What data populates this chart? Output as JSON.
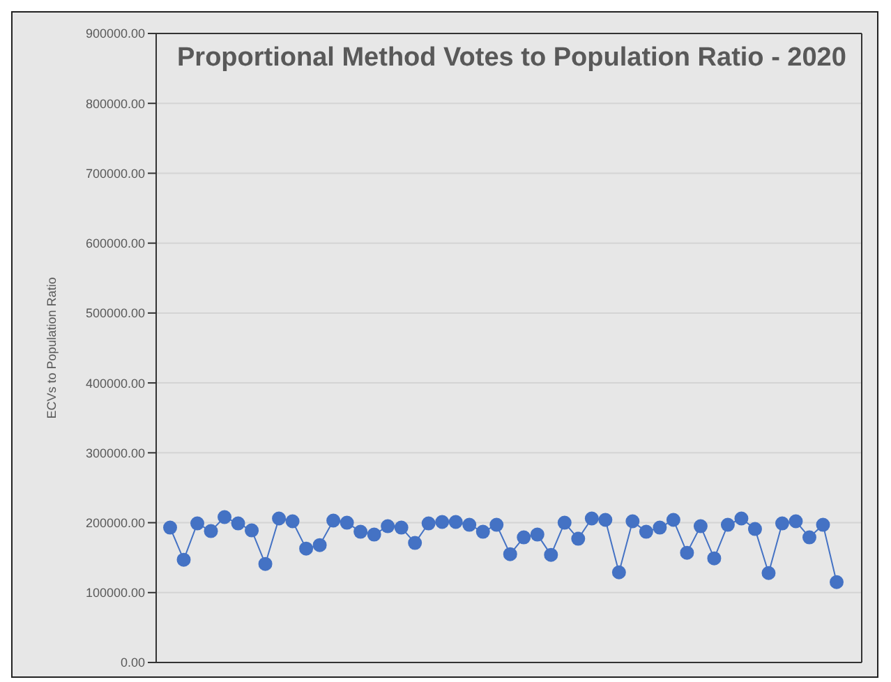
{
  "chart_data": {
    "type": "line",
    "title": "Proportional Method Votes to Population Ratio - 2020",
    "ylabel": "ECVs to Population Ratio",
    "categories": [
      null,
      null,
      null,
      null,
      null,
      null,
      null,
      null,
      null,
      null,
      null,
      null,
      null,
      null,
      null,
      null,
      null,
      null,
      null,
      null,
      null,
      null,
      null,
      null,
      null,
      null,
      null,
      null,
      null,
      null,
      null,
      null,
      null,
      null,
      null,
      null,
      null,
      null,
      null,
      null,
      null,
      null,
      null,
      null,
      null,
      null,
      null,
      null,
      null,
      null
    ],
    "series": [
      {
        "color": "#4472c4",
        "values": [
          193000,
          147000,
          199000,
          188000,
          208000,
          199000,
          189000,
          141000,
          206000,
          202000,
          163000,
          168000,
          203000,
          200000,
          187000,
          183000,
          195000,
          193000,
          171000,
          199000,
          201000,
          201000,
          197000,
          187000,
          197000,
          155000,
          179000,
          183000,
          154000,
          200000,
          177000,
          206000,
          204000,
          129000,
          202000,
          187000,
          193000,
          204000,
          157000,
          195000,
          149000,
          197000,
          206000,
          191000,
          128000,
          199000,
          202000,
          179000,
          197000,
          115000
        ]
      }
    ],
    "ylim": [
      0,
      900000
    ],
    "yticks": [
      {
        "value": 0,
        "label": "0.00"
      },
      {
        "value": 100000,
        "label": "100000.00"
      },
      {
        "value": 200000,
        "label": "200000.00"
      },
      {
        "value": 300000,
        "label": "300000.00"
      },
      {
        "value": 400000,
        "label": "400000.00"
      },
      {
        "value": 500000,
        "label": "500000.00"
      },
      {
        "value": 600000,
        "label": "600000.00"
      },
      {
        "value": 700000,
        "label": "700000.00"
      },
      {
        "value": 800000,
        "label": "800000.00"
      },
      {
        "value": 900000,
        "label": "900000.00"
      }
    ],
    "grid": "y",
    "marker": "circle",
    "line_style": "solid",
    "tick_labels": "y"
  }
}
